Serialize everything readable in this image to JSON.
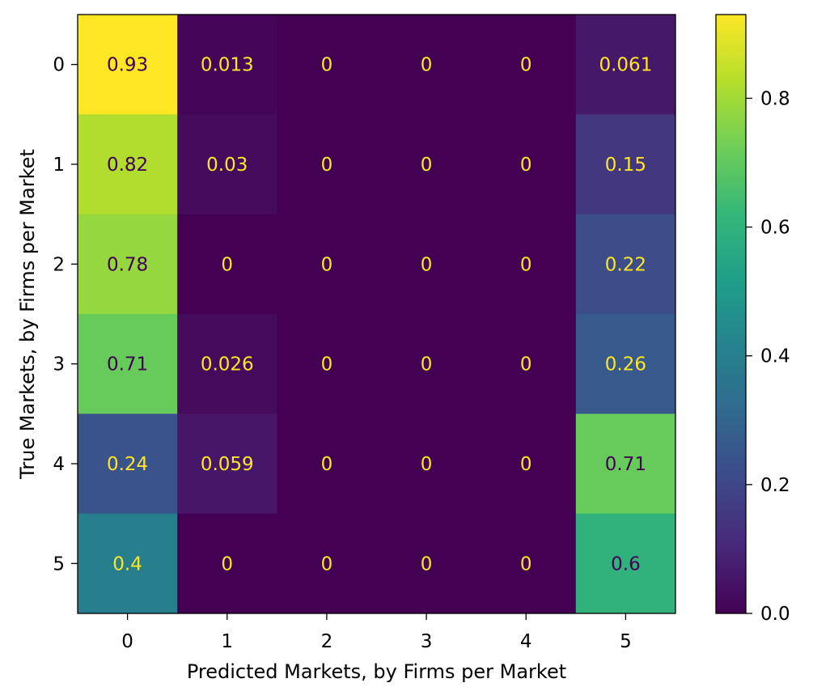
{
  "chart_data": {
    "type": "heatmap",
    "title": "",
    "xlabel": "Predicted Markets, by Firms per Market",
    "ylabel": "True Markets, by Firms per Market",
    "x_categories": [
      "0",
      "1",
      "2",
      "3",
      "4",
      "5"
    ],
    "y_categories": [
      "0",
      "1",
      "2",
      "3",
      "4",
      "5"
    ],
    "values": [
      [
        0.93,
        0.013,
        0,
        0,
        0,
        0.061
      ],
      [
        0.82,
        0.03,
        0,
        0,
        0,
        0.15
      ],
      [
        0.78,
        0,
        0,
        0,
        0,
        0.22
      ],
      [
        0.71,
        0.026,
        0,
        0,
        0,
        0.26
      ],
      [
        0.24,
        0.059,
        0,
        0,
        0,
        0.71
      ],
      [
        0.4,
        0,
        0,
        0,
        0,
        0.6
      ]
    ],
    "cell_labels": [
      [
        "0.93",
        "0.013",
        "0",
        "0",
        "0",
        "0.061"
      ],
      [
        "0.82",
        "0.03",
        "0",
        "0",
        "0",
        "0.15"
      ],
      [
        "0.78",
        "0",
        "0",
        "0",
        "0",
        "0.22"
      ],
      [
        "0.71",
        "0.026",
        "0",
        "0",
        "0",
        "0.26"
      ],
      [
        "0.24",
        "0.059",
        "0",
        "0",
        "0",
        "0.71"
      ],
      [
        "0.4",
        "0",
        "0",
        "0",
        "0",
        "0.6"
      ]
    ],
    "colormap": "viridis",
    "vmin": 0,
    "vmax": 0.93,
    "colorbar_ticks": [
      0.0,
      0.2,
      0.4,
      0.6,
      0.8
    ],
    "colorbar_tick_labels": [
      "0.0",
      "0.2",
      "0.4",
      "0.6",
      "0.8"
    ],
    "grid": false,
    "text_colors": {
      "light": "#fde725",
      "dark": "#440154"
    }
  }
}
